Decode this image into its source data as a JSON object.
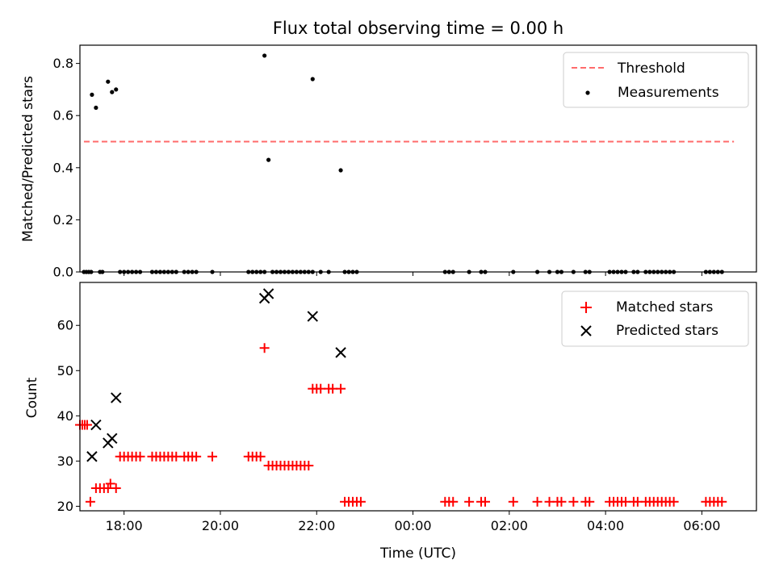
{
  "chart_data": [
    {
      "type": "scatter",
      "title": "Flux total observing time = 0.00 h",
      "xlabel": "",
      "ylabel": "Matched/Predicted stars",
      "xlim": [
        "17:05",
        "07:08"
      ],
      "ylim": [
        0,
        0.87
      ],
      "yticks": [
        0.0,
        0.2,
        0.4,
        0.6,
        0.8
      ],
      "ytick_labels": [
        "0.0",
        "0.2",
        "0.4",
        "0.6",
        "0.8"
      ],
      "grid": false,
      "legend": "top-right",
      "legend_items": [
        {
          "label": "Threshold",
          "kind": "dashed-line",
          "color": "#ff6b6b"
        },
        {
          "label": "Measurements",
          "kind": "dot",
          "color": "#000000"
        }
      ],
      "threshold": {
        "name": "Threshold",
        "value": 0.5,
        "x": [
          "17:10",
          "06:40"
        ],
        "color": "#ff6b6b"
      },
      "series": [
        {
          "name": "Measurements",
          "color": "#000000",
          "points": [
            [
              "17:20",
              0.68
            ],
            [
              "17:25",
              0.63
            ],
            [
              "17:40",
              0.73
            ],
            [
              "17:45",
              0.69
            ],
            [
              "17:50",
              0.7
            ],
            [
              "20:55",
              0.83
            ],
            [
              "21:00",
              0.43
            ],
            [
              "21:55",
              0.74
            ],
            [
              "22:30",
              0.39
            ],
            [
              "17:10",
              0
            ],
            [
              "17:13",
              0
            ],
            [
              "17:16",
              0
            ],
            [
              "17:19",
              0
            ],
            [
              "17:30",
              0
            ],
            [
              "17:33",
              0
            ],
            [
              "17:55",
              0
            ],
            [
              "18:00",
              0
            ],
            [
              "18:05",
              0
            ],
            [
              "18:10",
              0
            ],
            [
              "18:15",
              0
            ],
            [
              "18:20",
              0
            ],
            [
              "18:35",
              0
            ],
            [
              "18:40",
              0
            ],
            [
              "18:45",
              0
            ],
            [
              "18:50",
              0
            ],
            [
              "18:55",
              0
            ],
            [
              "19:00",
              0
            ],
            [
              "19:05",
              0
            ],
            [
              "19:15",
              0
            ],
            [
              "19:20",
              0
            ],
            [
              "19:25",
              0
            ],
            [
              "19:30",
              0
            ],
            [
              "19:50",
              0
            ],
            [
              "20:35",
              0
            ],
            [
              "20:40",
              0
            ],
            [
              "20:45",
              0
            ],
            [
              "20:50",
              0
            ],
            [
              "20:55",
              0
            ],
            [
              "21:05",
              0
            ],
            [
              "21:10",
              0
            ],
            [
              "21:15",
              0
            ],
            [
              "21:20",
              0
            ],
            [
              "21:25",
              0
            ],
            [
              "21:30",
              0
            ],
            [
              "21:35",
              0
            ],
            [
              "21:40",
              0
            ],
            [
              "21:45",
              0
            ],
            [
              "21:50",
              0
            ],
            [
              "21:55",
              0
            ],
            [
              "22:05",
              0
            ],
            [
              "22:15",
              0
            ],
            [
              "22:35",
              0
            ],
            [
              "22:40",
              0
            ],
            [
              "22:45",
              0
            ],
            [
              "22:50",
              0
            ],
            [
              "00:40",
              0
            ],
            [
              "00:45",
              0
            ],
            [
              "00:50",
              0
            ],
            [
              "01:10",
              0
            ],
            [
              "01:25",
              0
            ],
            [
              "01:30",
              0
            ],
            [
              "02:05",
              0
            ],
            [
              "02:35",
              0
            ],
            [
              "02:50",
              0
            ],
            [
              "03:00",
              0
            ],
            [
              "03:05",
              0
            ],
            [
              "03:20",
              0
            ],
            [
              "03:35",
              0
            ],
            [
              "03:40",
              0
            ],
            [
              "04:05",
              0
            ],
            [
              "04:10",
              0
            ],
            [
              "04:15",
              0
            ],
            [
              "04:20",
              0
            ],
            [
              "04:25",
              0
            ],
            [
              "04:35",
              0
            ],
            [
              "04:40",
              0
            ],
            [
              "04:50",
              0
            ],
            [
              "04:55",
              0
            ],
            [
              "05:00",
              0
            ],
            [
              "05:05",
              0
            ],
            [
              "05:10",
              0
            ],
            [
              "05:15",
              0
            ],
            [
              "05:20",
              0
            ],
            [
              "05:25",
              0
            ],
            [
              "06:05",
              0
            ],
            [
              "06:10",
              0
            ],
            [
              "06:15",
              0
            ],
            [
              "06:20",
              0
            ],
            [
              "06:25",
              0
            ]
          ]
        }
      ]
    },
    {
      "type": "scatter",
      "title": "",
      "xlabel": "Time (UTC)",
      "ylabel": "Count",
      "xlim": [
        "17:05",
        "07:08"
      ],
      "ylim": [
        19,
        69.5
      ],
      "yticks": [
        20,
        30,
        40,
        50,
        60
      ],
      "ytick_labels": [
        "20",
        "30",
        "40",
        "50",
        "60"
      ],
      "xticks": [
        "18:00",
        "20:00",
        "22:00",
        "00:00",
        "02:00",
        "04:00",
        "06:00"
      ],
      "grid": false,
      "legend": "top-right",
      "legend_items": [
        {
          "label": "Matched stars",
          "kind": "plus",
          "color": "#ff0000"
        },
        {
          "label": "Predicted stars",
          "kind": "cross",
          "color": "#000000"
        }
      ],
      "series": [
        {
          "name": "Matched stars",
          "marker": "plus",
          "color": "#ff0000",
          "points": [
            [
              "17:05",
              38
            ],
            [
              "17:08",
              38
            ],
            [
              "17:11",
              38
            ],
            [
              "17:14",
              38
            ],
            [
              "17:18",
              21
            ],
            [
              "17:25",
              24
            ],
            [
              "17:30",
              24
            ],
            [
              "17:35",
              24
            ],
            [
              "17:40",
              24
            ],
            [
              "17:43",
              25
            ],
            [
              "17:50",
              24
            ],
            [
              "17:55",
              31
            ],
            [
              "18:00",
              31
            ],
            [
              "18:05",
              31
            ],
            [
              "18:10",
              31
            ],
            [
              "18:15",
              31
            ],
            [
              "18:20",
              31
            ],
            [
              "18:35",
              31
            ],
            [
              "18:40",
              31
            ],
            [
              "18:45",
              31
            ],
            [
              "18:50",
              31
            ],
            [
              "18:55",
              31
            ],
            [
              "19:00",
              31
            ],
            [
              "19:05",
              31
            ],
            [
              "19:15",
              31
            ],
            [
              "19:20",
              31
            ],
            [
              "19:25",
              31
            ],
            [
              "19:30",
              31
            ],
            [
              "19:50",
              31
            ],
            [
              "20:35",
              31
            ],
            [
              "20:40",
              31
            ],
            [
              "20:45",
              31
            ],
            [
              "20:50",
              31
            ],
            [
              "20:55",
              55
            ],
            [
              "21:00",
              29
            ],
            [
              "21:05",
              29
            ],
            [
              "21:10",
              29
            ],
            [
              "21:15",
              29
            ],
            [
              "21:20",
              29
            ],
            [
              "21:25",
              29
            ],
            [
              "21:30",
              29
            ],
            [
              "21:35",
              29
            ],
            [
              "21:40",
              29
            ],
            [
              "21:45",
              29
            ],
            [
              "21:50",
              29
            ],
            [
              "21:55",
              46
            ],
            [
              "22:00",
              46
            ],
            [
              "22:05",
              46
            ],
            [
              "22:15",
              46
            ],
            [
              "22:20",
              46
            ],
            [
              "22:30",
              46
            ],
            [
              "22:35",
              21
            ],
            [
              "22:40",
              21
            ],
            [
              "22:45",
              21
            ],
            [
              "22:50",
              21
            ],
            [
              "22:55",
              21
            ],
            [
              "00:40",
              21
            ],
            [
              "00:45",
              21
            ],
            [
              "00:50",
              21
            ],
            [
              "01:10",
              21
            ],
            [
              "01:25",
              21
            ],
            [
              "01:30",
              21
            ],
            [
              "02:05",
              21
            ],
            [
              "02:35",
              21
            ],
            [
              "02:50",
              21
            ],
            [
              "03:00",
              21
            ],
            [
              "03:05",
              21
            ],
            [
              "03:20",
              21
            ],
            [
              "03:35",
              21
            ],
            [
              "03:40",
              21
            ],
            [
              "04:05",
              21
            ],
            [
              "04:10",
              21
            ],
            [
              "04:15",
              21
            ],
            [
              "04:20",
              21
            ],
            [
              "04:25",
              21
            ],
            [
              "04:35",
              21
            ],
            [
              "04:40",
              21
            ],
            [
              "04:50",
              21
            ],
            [
              "04:55",
              21
            ],
            [
              "05:00",
              21
            ],
            [
              "05:05",
              21
            ],
            [
              "05:10",
              21
            ],
            [
              "05:15",
              21
            ],
            [
              "05:20",
              21
            ],
            [
              "05:25",
              21
            ],
            [
              "06:05",
              21
            ],
            [
              "06:10",
              21
            ],
            [
              "06:15",
              21
            ],
            [
              "06:20",
              21
            ],
            [
              "06:25",
              21
            ]
          ]
        },
        {
          "name": "Predicted stars",
          "marker": "cross",
          "color": "#000000",
          "points": [
            [
              "17:20",
              31
            ],
            [
              "17:25",
              38
            ],
            [
              "17:40",
              34
            ],
            [
              "17:45",
              35
            ],
            [
              "17:50",
              44
            ],
            [
              "20:55",
              66
            ],
            [
              "21:00",
              67
            ],
            [
              "21:55",
              62
            ],
            [
              "22:30",
              54
            ]
          ]
        }
      ]
    }
  ]
}
